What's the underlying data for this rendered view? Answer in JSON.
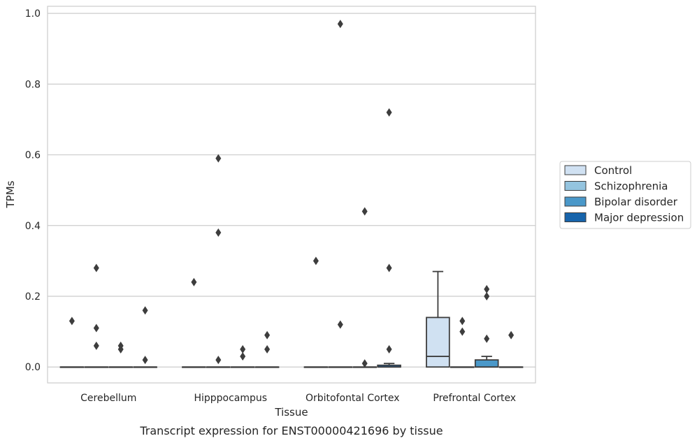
{
  "chart_data": {
    "type": "box",
    "title": "",
    "caption": "Transcript expression for ENST00000421696 by tissue",
    "xlabel": "Tissue",
    "ylabel": "TPMs",
    "ylim": [
      -0.045,
      1.02
    ],
    "yticks": [
      "0.0",
      "0.2",
      "0.4",
      "0.6",
      "0.8",
      "1.0"
    ],
    "grid": true,
    "legend_position": "right",
    "categories": [
      "Cerebellum",
      "Hipppocampus",
      "Orbitofontal Cortex",
      "Prefrontal Cortex"
    ],
    "series": [
      {
        "name": "Control",
        "color": "#d0e1f2",
        "boxes": [
          {
            "q1": 0,
            "median": 0,
            "q3": 0,
            "whisker_low": 0,
            "whisker_high": 0,
            "outliers": [
              0.13
            ]
          },
          {
            "q1": 0,
            "median": 0,
            "q3": 0,
            "whisker_low": 0,
            "whisker_high": 0,
            "outliers": [
              0.24
            ]
          },
          {
            "q1": 0,
            "median": 0,
            "q3": 0,
            "whisker_low": 0,
            "whisker_high": 0,
            "outliers": [
              0.3
            ]
          },
          {
            "q1": 0,
            "median": 0.03,
            "q3": 0.14,
            "whisker_low": 0,
            "whisker_high": 0.27,
            "outliers": []
          }
        ]
      },
      {
        "name": "Schizophrenia",
        "color": "#94c4df",
        "boxes": [
          {
            "q1": 0,
            "median": 0,
            "q3": 0,
            "whisker_low": 0,
            "whisker_high": 0,
            "outliers": [
              0.28,
              0.11,
              0.06
            ]
          },
          {
            "q1": 0,
            "median": 0,
            "q3": 0,
            "whisker_low": 0,
            "whisker_high": 0,
            "outliers": [
              0.59,
              0.38,
              0.02
            ]
          },
          {
            "q1": 0,
            "median": 0,
            "q3": 0,
            "whisker_low": 0,
            "whisker_high": 0,
            "outliers": [
              0.97,
              0.12
            ]
          },
          {
            "q1": 0,
            "median": 0,
            "q3": 0,
            "whisker_low": 0,
            "whisker_high": 0,
            "outliers": [
              0.13,
              0.1
            ]
          }
        ]
      },
      {
        "name": "Bipolar disorder",
        "color": "#4a98c9",
        "boxes": [
          {
            "q1": 0,
            "median": 0,
            "q3": 0,
            "whisker_low": 0,
            "whisker_high": 0,
            "outliers": [
              0.06,
              0.05
            ]
          },
          {
            "q1": 0,
            "median": 0,
            "q3": 0,
            "whisker_low": 0,
            "whisker_high": 0,
            "outliers": [
              0.05,
              0.03
            ]
          },
          {
            "q1": 0,
            "median": 0,
            "q3": 0,
            "whisker_low": 0,
            "whisker_high": 0,
            "outliers": [
              0.44,
              0.01
            ]
          },
          {
            "q1": 0,
            "median": 0,
            "q3": 0.02,
            "whisker_low": 0,
            "whisker_high": 0.03,
            "outliers": [
              0.22,
              0.2,
              0.08
            ]
          }
        ]
      },
      {
        "name": "Major depression",
        "color": "#1764ab",
        "boxes": [
          {
            "q1": 0,
            "median": 0,
            "q3": 0,
            "whisker_low": 0,
            "whisker_high": 0,
            "outliers": [
              0.16,
              0.02
            ]
          },
          {
            "q1": 0,
            "median": 0,
            "q3": 0,
            "whisker_low": 0,
            "whisker_high": 0,
            "outliers": [
              0.09,
              0.05
            ]
          },
          {
            "q1": 0,
            "median": 0.0,
            "q3": 0.005,
            "whisker_low": 0,
            "whisker_high": 0.01,
            "outliers": [
              0.72,
              0.28,
              0.05
            ]
          },
          {
            "q1": 0,
            "median": 0,
            "q3": 0,
            "whisker_low": 0,
            "whisker_high": 0,
            "outliers": [
              0.09
            ]
          }
        ]
      }
    ]
  }
}
